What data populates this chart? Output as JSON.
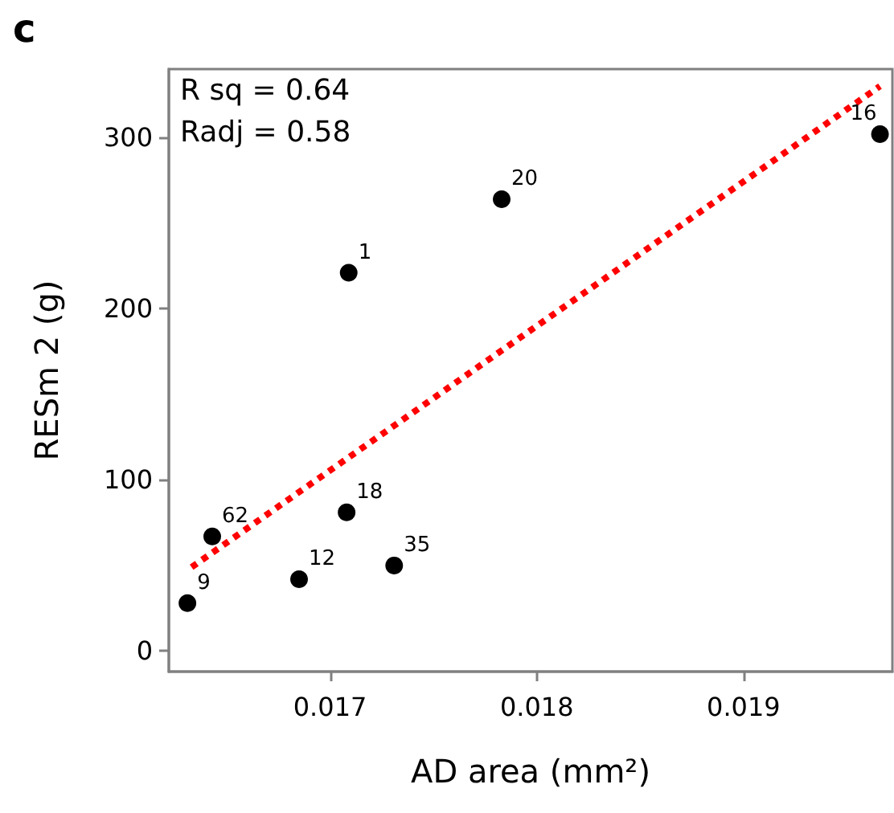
{
  "chart_data": {
    "type": "scatter",
    "xlabel": "AD area (mm²)",
    "ylabel": "RESm 2 (g)",
    "annotations": [
      "c",
      "R sq = 0.64",
      "Radj = 0.58",
      {
        "text": "9",
        "x": 0.01631,
        "y": 28
      },
      {
        "text": "62",
        "x": 0.01643,
        "y": 67
      },
      {
        "text": "12",
        "x": 0.01685,
        "y": 42
      },
      {
        "text": "18",
        "x": 0.01708,
        "y": 81
      },
      {
        "text": "35",
        "x": 0.01731,
        "y": 50
      },
      {
        "text": "1",
        "x": 0.01709,
        "y": 221
      },
      {
        "text": "20",
        "x": 0.01783,
        "y": 264
      },
      {
        "text": "16",
        "x": 0.01966,
        "y": 302
      }
    ],
    "xlim": [
      0.01622,
      0.01972
    ],
    "xticks": [
      0.017,
      0.018,
      0.019
    ],
    "ylim": [
      -12,
      340
    ],
    "yticks": [
      0,
      100,
      200,
      300
    ],
    "marker": "circle",
    "series": [
      {
        "color": "#000000",
        "x": [
          0.01631,
          0.01643,
          0.01685,
          0.01708,
          0.01731,
          0.01709,
          0.01783,
          0.01966
        ],
        "values": [
          28,
          67,
          42,
          81,
          50,
          221,
          264,
          302
        ]
      },
      {
        "type": "line",
        "color": "#ff0000",
        "line_style": "dotted",
        "marker": "none",
        "x": [
          0.01633,
          0.01966
        ],
        "values": [
          49,
          330
        ]
      }
    ]
  }
}
